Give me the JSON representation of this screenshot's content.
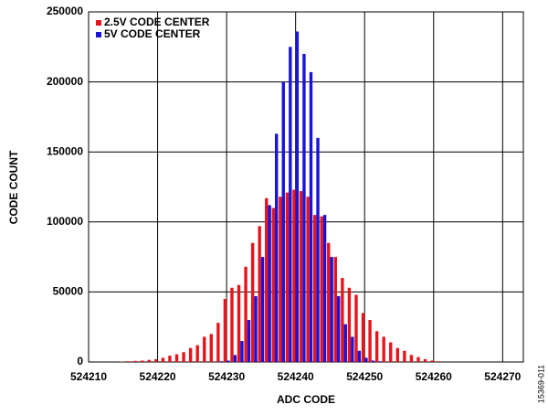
{
  "chart_data": {
    "type": "bar",
    "xlabel": "ADC CODE",
    "ylabel": "CODE COUNT",
    "note": "15369-011",
    "xlim": [
      524210,
      524273
    ],
    "xticks": [
      524210,
      524220,
      524230,
      524240,
      524250,
      524260,
      524270
    ],
    "ylim": [
      0,
      250000
    ],
    "yticks": [
      0,
      50000,
      100000,
      150000,
      200000,
      250000
    ],
    "grid": true,
    "legend": "upper left",
    "series": [
      {
        "name": "2.5V CODE CENTER",
        "color": "#e8141c",
        "x": [
          524215,
          524216,
          524217,
          524218,
          524219,
          524220,
          524221,
          524222,
          524223,
          524224,
          524225,
          524226,
          524227,
          524228,
          524229,
          524230,
          524231,
          524232,
          524233,
          524234,
          524235,
          524236,
          524237,
          524238,
          524239,
          524240,
          524241,
          524242,
          524243,
          524244,
          524245,
          524246,
          524247,
          524248,
          524249,
          524250,
          524251,
          524252,
          524253,
          524254,
          524255,
          524256,
          524257,
          524258,
          524259,
          524260,
          524261
        ],
        "values": [
          300,
          500,
          800,
          1000,
          1500,
          2000,
          3000,
          4500,
          5500,
          7000,
          10000,
          12000,
          18000,
          20000,
          28000,
          45000,
          53000,
          55000,
          68000,
          85000,
          97000,
          117000,
          110000,
          118000,
          121000,
          123000,
          122000,
          118000,
          105000,
          104000,
          85000,
          75000,
          60000,
          53000,
          48000,
          35000,
          30000,
          22000,
          18000,
          14000,
          10000,
          8000,
          5000,
          3500,
          2000,
          1000,
          500
        ]
      },
      {
        "name": "5V CODE CENTER",
        "color": "#1a14d8",
        "x": [
          524229,
          524230,
          524231,
          524232,
          524233,
          524234,
          524235,
          524236,
          524237,
          524238,
          524239,
          524240,
          524241,
          524242,
          524243,
          524244,
          524245,
          524246,
          524247,
          524248,
          524249,
          524250,
          524251,
          524252
        ],
        "values": [
          500,
          1000,
          5000,
          15000,
          30000,
          47000,
          75000,
          112000,
          163000,
          200000,
          225000,
          236000,
          220000,
          207000,
          160000,
          105000,
          75000,
          47000,
          27000,
          18000,
          8000,
          3000,
          1000,
          500
        ]
      }
    ]
  }
}
